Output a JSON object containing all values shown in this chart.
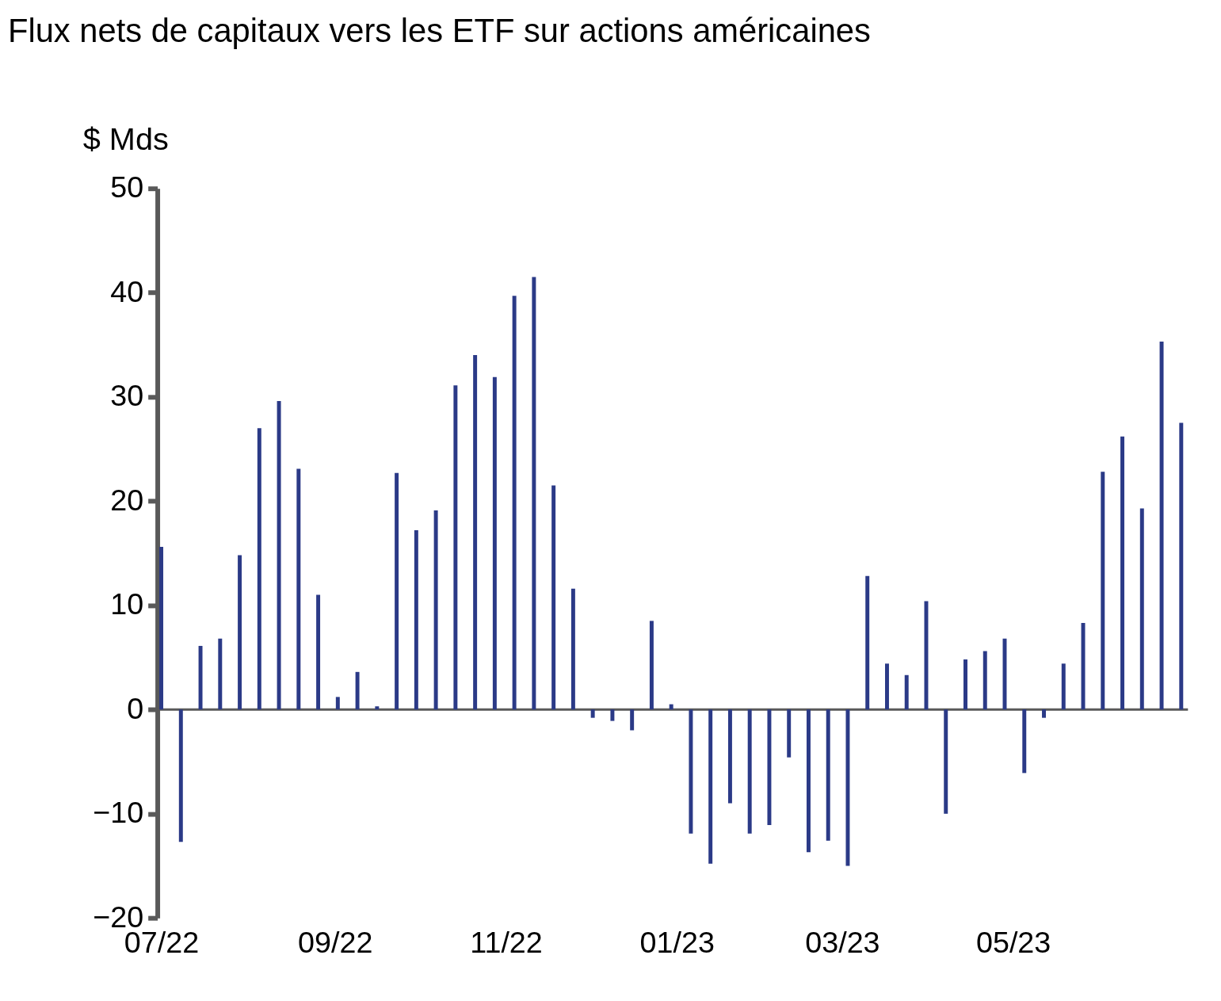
{
  "chart_data": {
    "type": "bar",
    "title": "Flux nets de capitaux vers les ETF sur actions américaines",
    "ylabel": "$ Mds",
    "x": [
      "2022-07-01",
      "2022-07-08",
      "2022-07-15",
      "2022-07-22",
      "2022-07-29",
      "2022-08-05",
      "2022-08-12",
      "2022-08-19",
      "2022-08-26",
      "2022-09-02",
      "2022-09-09",
      "2022-09-16",
      "2022-09-23",
      "2022-09-30",
      "2022-10-07",
      "2022-10-14",
      "2022-10-21",
      "2022-10-28",
      "2022-11-04",
      "2022-11-11",
      "2022-11-18",
      "2022-11-25",
      "2022-12-02",
      "2022-12-09",
      "2022-12-16",
      "2022-12-23",
      "2022-12-30",
      "2023-01-06",
      "2023-01-13",
      "2023-01-20",
      "2023-01-27",
      "2023-02-03",
      "2023-02-10",
      "2023-02-17",
      "2023-02-24",
      "2023-03-03",
      "2023-03-10",
      "2023-03-17",
      "2023-03-24",
      "2023-03-31",
      "2023-04-07",
      "2023-04-14",
      "2023-04-21",
      "2023-04-28",
      "2023-05-05",
      "2023-05-12",
      "2023-05-19",
      "2023-05-26",
      "2023-06-02",
      "2023-06-09",
      "2023-06-16",
      "2023-06-23",
      "2023-06-30"
    ],
    "values": [
      15.6,
      -12.7,
      6.1,
      6.8,
      14.8,
      27.0,
      29.6,
      23.1,
      11.0,
      1.2,
      3.6,
      0.3,
      22.7,
      17.2,
      19.1,
      31.1,
      34.0,
      31.9,
      39.7,
      41.5,
      21.5,
      11.6,
      -0.8,
      -1.1,
      -2.0,
      8.5,
      0.5,
      -11.9,
      -14.8,
      -9.0,
      -11.9,
      -11.1,
      -4.6,
      -13.7,
      -12.6,
      -15.0,
      12.8,
      4.4,
      3.3,
      10.4,
      -10.0,
      4.8,
      5.6,
      6.8,
      -6.1,
      -0.8,
      4.4,
      8.3,
      22.8,
      26.2,
      19.3,
      35.3,
      27.5
    ],
    "color": "#2b3a87",
    "xlim": [
      "2022-07-01",
      "2023-07-01"
    ],
    "xticks": [
      {
        "value": "2022-07-01",
        "label": "07/22"
      },
      {
        "value": "2022-09-01",
        "label": "09/22"
      },
      {
        "value": "2022-11-01",
        "label": "11/22"
      },
      {
        "value": "2023-01-01",
        "label": "01/23"
      },
      {
        "value": "2023-03-01",
        "label": "03/23"
      },
      {
        "value": "2023-05-01",
        "label": "05/23"
      }
    ],
    "ylim": [
      -20,
      50
    ],
    "yticks": [
      -20,
      -10,
      0,
      10,
      20,
      30,
      40,
      50
    ],
    "ref_lines": [
      {
        "axis": "y",
        "value": 0,
        "color": "#595959"
      }
    ],
    "grid": false
  }
}
